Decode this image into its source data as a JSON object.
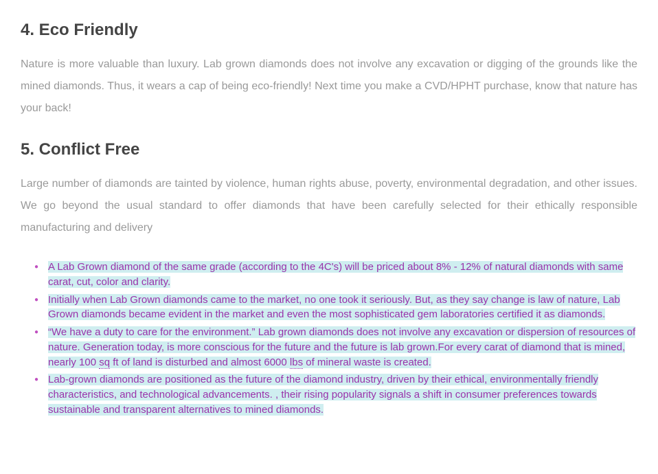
{
  "colors": {
    "heading": "#444444",
    "body_text": "#999999",
    "bullet_text": "#9933aa",
    "bullet_marker": "#c050c0",
    "highlight_bg": "#cfeef0",
    "page_bg": "#ffffff"
  },
  "typography": {
    "heading_fontsize": 24,
    "heading_weight": "bold",
    "body_fontsize": 16,
    "body_lineheight": 2.0,
    "bullet_fontsize": 15,
    "bullet_lineheight": 1.45,
    "font_family": "Arial"
  },
  "sections": [
    {
      "heading": "4. Eco Friendly",
      "paragraph": "Nature is more valuable than luxury. Lab grown diamonds does not involve any excavation or digging of the grounds like the mined diamonds. Thus, it wears a cap of being eco-friendly! Next time you make a CVD/HPHT purchase, know that nature has your back!"
    },
    {
      "heading": "5. Conflict Free",
      "paragraph": "Large number of diamonds are tainted by violence, human rights abuse, poverty, environmental degradation, and other issues. We go beyond the usual standard to offer diamonds that have been carefully selected for their ethically responsible manufacturing and delivery"
    }
  ],
  "bullets": [
    "A Lab Grown diamond of the same grade (according to the 4C's) will be priced about 8% - 12% of natural diamonds with same carat, cut, color and clarity.",
    "Initially when Lab Grown diamonds came to the market, no one took it seriously. But, as they say change is law of nature, Lab Grown diamonds became evident in the market and even the most sophisticated gem laboratories certified it as diamonds.",
    "“We have a duty to care for the environment.” Lab grown diamonds does not involve any excavation or dispersion of resources of nature. Generation today, is more conscious for the future and the future is lab grown.For every carat of diamond that is mined, nearly 100 sq ft of land is disturbed and almost 6000 lbs of mineral waste is created.",
    "Lab-grown diamonds are positioned as the future of the diamond industry, driven by their ethical, environmentally friendly characteristics, and technological advancements. , their rising popularity signals a shift in consumer preferences towards sustainable and transparent alternatives to mined diamonds."
  ],
  "bullet_highlighted": true,
  "dotted_tokens": [
    "sq",
    "lbs"
  ]
}
